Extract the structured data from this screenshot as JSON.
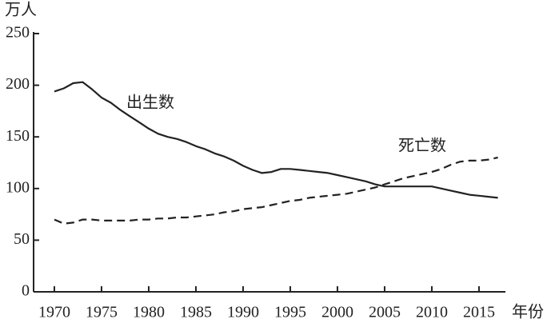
{
  "chart_data": {
    "type": "line",
    "y_unit": "万人",
    "x_label": "年份",
    "x": [
      1970,
      1971,
      1972,
      1973,
      1974,
      1975,
      1976,
      1977,
      1978,
      1979,
      1980,
      1981,
      1982,
      1983,
      1984,
      1985,
      1986,
      1987,
      1988,
      1989,
      1990,
      1991,
      1992,
      1993,
      1994,
      1995,
      1996,
      1997,
      1998,
      1999,
      2000,
      2001,
      2002,
      2003,
      2004,
      2005,
      2006,
      2007,
      2008,
      2009,
      2010,
      2011,
      2012,
      2013,
      2014,
      2015,
      2016,
      2017
    ],
    "series": [
      {
        "name": "出生数",
        "color": "#222222",
        "dash": false,
        "values": [
          194,
          197,
          202,
          203,
          196,
          188,
          183,
          176,
          170,
          164,
          158,
          153,
          150,
          148,
          145,
          141,
          138,
          134,
          131,
          127,
          122,
          118,
          115,
          116,
          119,
          119,
          118,
          117,
          116,
          115,
          113,
          111,
          109,
          107,
          104,
          102,
          102,
          102,
          102,
          102,
          102,
          100,
          98,
          96,
          94,
          93,
          92,
          91
        ]
      },
      {
        "name": "死亡数",
        "color": "#222222",
        "dash": true,
        "values": [
          70,
          66,
          67,
          70,
          70,
          69,
          69,
          69,
          69,
          70,
          70,
          71,
          71,
          72,
          72,
          73,
          74,
          75,
          77,
          78,
          80,
          81,
          82,
          84,
          86,
          88,
          89,
          91,
          92,
          93,
          94,
          95,
          97,
          99,
          101,
          104,
          107,
          110,
          112,
          114,
          116,
          119,
          123,
          126,
          127,
          127,
          128,
          130
        ]
      }
    ],
    "xlim": [
      1967.8,
      2017.8
    ],
    "xticks": [
      1970,
      1975,
      1980,
      1985,
      1990,
      1995,
      2000,
      2005,
      2010,
      2015
    ],
    "ylim": [
      0,
      250
    ],
    "yticks": [
      0,
      50,
      100,
      150,
      200,
      250
    ]
  }
}
